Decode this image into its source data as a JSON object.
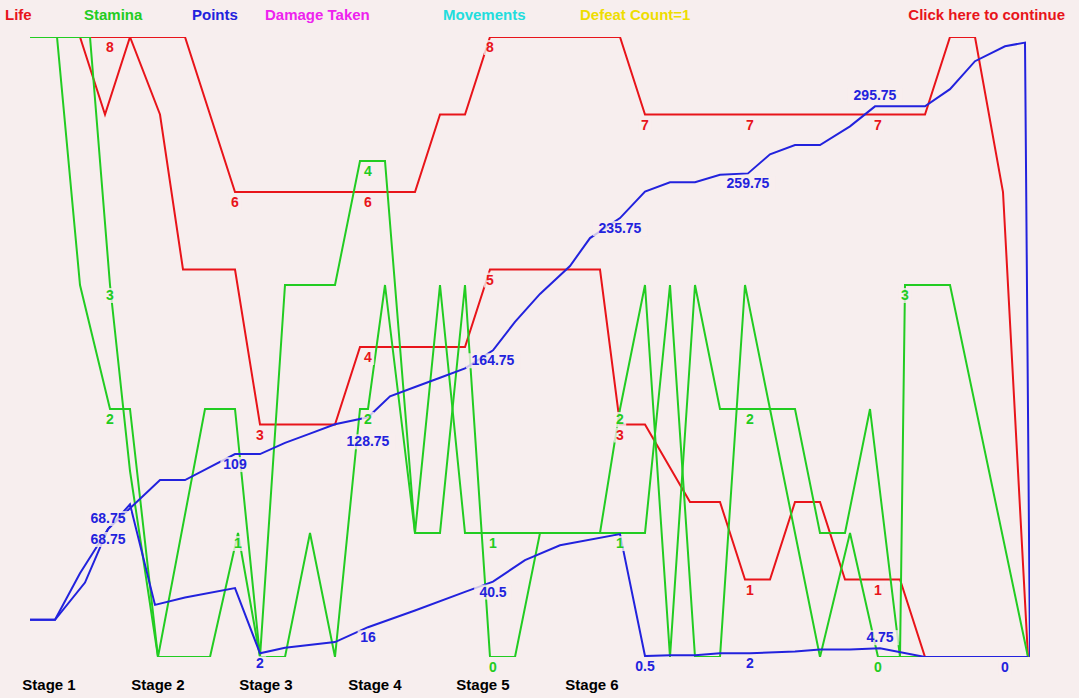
{
  "header": {
    "items": [
      {
        "text": "Life",
        "color": "#e8141a"
      },
      {
        "text": "Stamina",
        "color": "#22cc22"
      },
      {
        "text": "Points",
        "color": "#2222dd"
      },
      {
        "text": "Damage Taken",
        "color": "#ee22ee"
      },
      {
        "text": "Movements",
        "color": "#22dddd"
      },
      {
        "text": "Defeat Count=1",
        "color": "#eedd00"
      }
    ],
    "button": {
      "text": "Click here to continue",
      "color": "#e8141a"
    }
  },
  "chart_data": [
    {
      "type": "line",
      "xlim": [
        0,
        100
      ],
      "xticks": [
        {
          "value": 1.9,
          "label": "Stage 1"
        },
        {
          "value": 12.8,
          "label": "Stage 2"
        },
        {
          "value": 23.6,
          "label": "Stage 3"
        },
        {
          "value": 34.5,
          "label": "Stage 4"
        },
        {
          "value": 45.3,
          "label": "Stage 5"
        },
        {
          "value": 56.2,
          "label": "Stage 6"
        }
      ],
      "ylim": [
        0,
        8
      ],
      "tick_labels": "x",
      "data_labels": true,
      "series": [
        {
          "name": "Life",
          "color": "#e8141a",
          "x": [
            0,
            5,
            7.5,
            10,
            15.5,
            20.5,
            33.8,
            38.5,
            41,
            43.5,
            46,
            59,
            61.5,
            72,
            84.8,
            89.5,
            92,
            94.5,
            97.3,
            99.8
          ],
          "values": [
            8,
            8,
            7,
            8,
            8,
            6,
            6,
            6,
            7,
            7,
            8,
            8,
            7,
            7,
            7,
            7,
            8,
            8,
            6,
            0
          ],
          "value_labels": [
            null,
            null,
            null,
            null,
            null,
            "6",
            "6",
            null,
            null,
            null,
            "8",
            null,
            "7",
            "7",
            "7",
            null,
            null,
            null,
            null,
            null
          ]
        },
        {
          "name": "Life",
          "color": "#e8141a",
          "x": [
            0,
            8,
            10,
            13,
            15.3,
            20.5,
            23,
            30.5,
            33,
            33.8,
            43.5,
            46,
            57,
            59,
            61.5,
            66,
            69,
            71.5,
            72,
            74,
            76.5,
            79,
            81.5,
            84.8,
            87,
            89.5
          ],
          "values": [
            8,
            8,
            8,
            7,
            5,
            5,
            3,
            3,
            4,
            4,
            4,
            5,
            5,
            3,
            3,
            2,
            2,
            1,
            1,
            1,
            2,
            2,
            1,
            1,
            1,
            0
          ],
          "value_labels": [
            null,
            "8",
            null,
            null,
            null,
            null,
            "3",
            null,
            null,
            "4",
            null,
            "5",
            null,
            "3",
            null,
            null,
            null,
            null,
            "1",
            null,
            null,
            null,
            null,
            "1",
            null,
            null
          ]
        }
      ]
    },
    {
      "type": "line",
      "xlim": [
        0,
        100
      ],
      "ylim": [
        0,
        5
      ],
      "tick_labels": false,
      "data_labels": true,
      "series": [
        {
          "name": "Stamina",
          "color": "#22cc22",
          "x": [
            0,
            2.7,
            5,
            8,
            10,
            12.8,
            17.5,
            20.5,
            23,
            25.5,
            30.5,
            33,
            33.8,
            35.5,
            38.5,
            41,
            43.5,
            46,
            46.3,
            57,
            59,
            61.5,
            64,
            66.5,
            69,
            72,
            76.5,
            79,
            81.5,
            84,
            87,
            87.5,
            92,
            99.8
          ],
          "values": [
            5,
            5,
            3,
            2,
            2,
            0,
            2,
            2,
            0,
            3,
            3,
            4,
            4,
            4,
            1,
            3,
            1,
            1,
            1,
            1,
            2,
            3,
            0,
            3,
            2,
            2,
            2,
            1,
            1,
            2,
            0,
            3,
            3,
            0
          ],
          "value_labels": [
            null,
            null,
            null,
            "2",
            null,
            null,
            null,
            null,
            null,
            null,
            null,
            null,
            "4",
            null,
            null,
            null,
            null,
            null,
            "1",
            null,
            "2",
            null,
            null,
            null,
            null,
            "2",
            null,
            null,
            null,
            null,
            null,
            "3",
            null,
            null
          ]
        },
        {
          "name": "Stamina",
          "color": "#22cc22",
          "x": [
            0,
            6,
            8,
            10,
            12.8,
            18,
            20.8,
            23,
            25.5,
            28,
            30.5,
            33,
            33.8,
            35.5,
            38.5,
            41,
            43.5,
            46,
            46.3,
            48.5,
            51,
            56.5,
            59,
            61.5,
            64,
            66.5,
            69,
            71.5,
            74,
            76.5,
            79,
            82,
            84.8,
            89.5
          ],
          "values": [
            5,
            5,
            3,
            1.5,
            0,
            0,
            1,
            0,
            0,
            1,
            0,
            2,
            2,
            3,
            1,
            1,
            3,
            0,
            0,
            0,
            1,
            1,
            1,
            1,
            3,
            0,
            0,
            3,
            2,
            1,
            0,
            1,
            0,
            0
          ],
          "value_labels": [
            null,
            null,
            "3",
            null,
            null,
            null,
            "1",
            null,
            null,
            null,
            null,
            null,
            "2",
            null,
            null,
            null,
            null,
            null,
            "0",
            null,
            null,
            null,
            "1",
            null,
            null,
            null,
            null,
            null,
            null,
            null,
            null,
            null,
            "0",
            null
          ]
        }
      ]
    },
    {
      "type": "line",
      "xlim": [
        0,
        100
      ],
      "ylim": [
        0,
        333
      ],
      "tick_labels": false,
      "data_labels": true,
      "series": [
        {
          "name": "Points",
          "color": "#2222dd",
          "x": [
            0,
            2.5,
            5.5,
            7.8,
            13,
            15.5,
            20.5,
            23,
            25.5,
            28,
            30.5,
            33.8,
            36,
            38.5,
            41,
            43.5,
            46.3,
            48.5,
            51,
            54,
            56,
            59,
            61.5,
            64,
            66.5,
            69,
            71.8,
            74,
            76.5,
            79,
            82,
            84.5,
            89.5,
            92,
            94.5,
            97.5,
            99.5,
            100
          ],
          "values": [
            20,
            20,
            40,
            68.75,
            95,
            95,
            109,
            109,
            115,
            120,
            125,
            128.75,
            140,
            145,
            150,
            155,
            164.75,
            180,
            195,
            210,
            225,
            235.75,
            250,
            255,
            255,
            259,
            259.75,
            270,
            275,
            275,
            285,
            295.75,
            295.75,
            305,
            320,
            328,
            330,
            0
          ],
          "value_labels": [
            null,
            null,
            null,
            "68.75",
            null,
            null,
            "109",
            null,
            null,
            null,
            null,
            "128.75",
            null,
            null,
            null,
            null,
            "164.75",
            null,
            null,
            null,
            null,
            "235.75",
            null,
            null,
            null,
            null,
            "259.75",
            null,
            null,
            null,
            null,
            "295.75",
            null,
            null,
            null,
            null,
            null,
            null
          ]
        },
        {
          "name": "Points",
          "color": "#2222dd",
          "x": [
            0,
            2.5,
            5,
            7.8,
            10,
            12.5,
            15.5,
            20.5,
            23,
            25.5,
            30.5,
            33.8,
            38.5,
            43.5,
            46.3,
            49.5,
            53,
            59,
            61.5,
            64,
            66.5,
            69,
            72,
            76.5,
            79,
            82,
            85,
            89.5,
            97.5,
            99.8
          ],
          "values": [
            20,
            20,
            45,
            68.75,
            82,
            28,
            32,
            37,
            2,
            5,
            8,
            16,
            25,
            35,
            40.5,
            52,
            60,
            66,
            0.5,
            1,
            1,
            2,
            2,
            3,
            4,
            4,
            4.75,
            0,
            0,
            0
          ],
          "value_labels": [
            null,
            null,
            null,
            "68.75",
            null,
            null,
            null,
            null,
            "2",
            null,
            null,
            "16",
            null,
            null,
            "40.5",
            null,
            null,
            null,
            "0.5",
            null,
            null,
            null,
            "2",
            null,
            null,
            null,
            "4.75",
            null,
            "0",
            null
          ]
        }
      ]
    }
  ]
}
